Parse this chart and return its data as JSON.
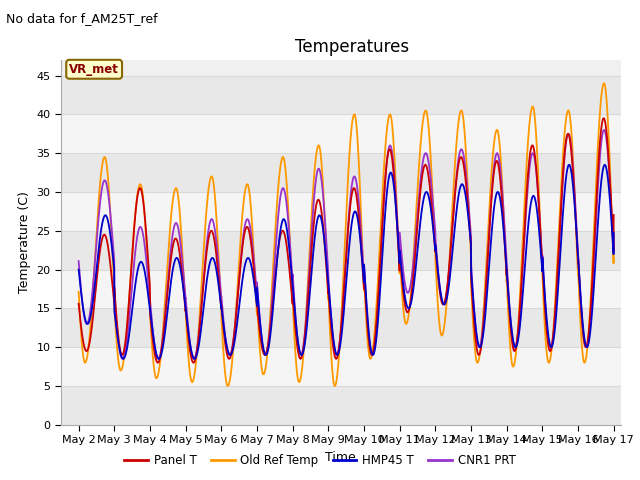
{
  "title": "Temperatures",
  "xlabel": "Time",
  "ylabel": "Temperature (C)",
  "annotation_text": "No data for f_AM25T_ref",
  "legend_label_text": "VR_met",
  "ylim": [
    0,
    47
  ],
  "xlim_days": [
    1.5,
    17.2
  ],
  "xtick_positions": [
    2,
    3,
    4,
    5,
    6,
    7,
    8,
    9,
    10,
    11,
    12,
    13,
    14,
    15,
    16,
    17
  ],
  "xtick_labels": [
    "May 2",
    "May 3",
    "May 4",
    "May 5",
    "May 6",
    "May 7",
    "May 8",
    "May 9",
    "May 10",
    "May 11",
    "May 12",
    "May 13",
    "May 14",
    "May 15",
    "May 16",
    "May 17"
  ],
  "ytick_positions": [
    0,
    5,
    10,
    15,
    20,
    25,
    30,
    35,
    40,
    45
  ],
  "series_colors": {
    "panel_t": "#cc0000",
    "old_ref": "#ff9900",
    "hmp45": "#0000cc",
    "cnr1": "#9933cc"
  },
  "legend_entries": [
    "Panel T",
    "Old Ref Temp",
    "HMP45 T",
    "CNR1 PRT"
  ],
  "fig_bg_color": "#ffffff",
  "plot_bg_color": "#f0f0f0",
  "band_colors": [
    "#e8e8e8",
    "#f5f5f5"
  ],
  "grid_color": "#d8d8d8",
  "title_fontsize": 12,
  "label_fontsize": 9,
  "tick_fontsize": 8,
  "annotation_fontsize": 9,
  "legend_box_color": "#ffffcc",
  "legend_box_edge": "#886600"
}
